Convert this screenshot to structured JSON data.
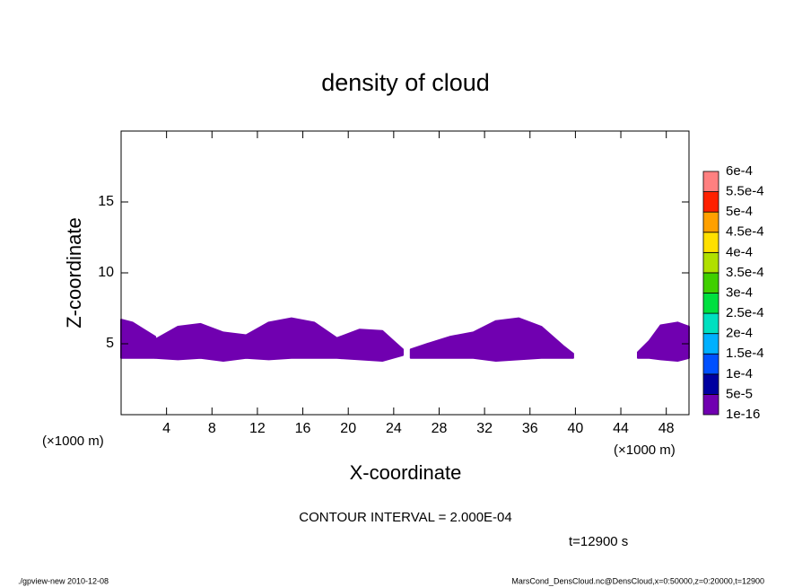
{
  "chart_data": {
    "type": "filled-contour",
    "title": "density of cloud",
    "xlabel": "X-coordinate",
    "ylabel": "Z-coordinate",
    "x_unit_label": "(×1000 m)",
    "xlim": [
      0,
      50
    ],
    "ylim": [
      0,
      20
    ],
    "xticks": [
      4,
      8,
      12,
      16,
      20,
      24,
      28,
      32,
      36,
      40,
      44,
      48
    ],
    "yticks": [
      5,
      10,
      15
    ],
    "regions": [
      {
        "x": [
          0,
          1,
          2,
          3,
          3.2
        ],
        "top": [
          6.7,
          6.5,
          6.0,
          5.5,
          4.6
        ],
        "bottom": [
          4.0,
          4.0,
          4.0,
          4.0,
          4.2
        ]
      },
      {
        "x": [
          3,
          5,
          7,
          9,
          11,
          13,
          15,
          17,
          19,
          21,
          23,
          24.8
        ],
        "top": [
          5.3,
          6.2,
          6.4,
          5.8,
          5.6,
          6.5,
          6.8,
          6.5,
          5.4,
          6.0,
          5.9,
          4.6
        ],
        "bottom": [
          4.0,
          3.9,
          4.0,
          3.8,
          4.0,
          3.9,
          4.0,
          4.0,
          4.0,
          3.9,
          3.8,
          4.2
        ]
      },
      {
        "x": [
          25.5,
          27,
          29,
          31,
          33,
          35,
          37,
          39,
          39.8
        ],
        "top": [
          4.6,
          5.0,
          5.5,
          5.8,
          6.6,
          6.8,
          6.2,
          4.8,
          4.3
        ],
        "bottom": [
          4.0,
          4.0,
          4.0,
          4.0,
          3.8,
          3.9,
          4.0,
          4.0,
          4.0
        ]
      },
      {
        "x": [
          45.5,
          46.5,
          47.5,
          49,
          50
        ],
        "top": [
          4.4,
          5.2,
          6.3,
          6.5,
          6.2
        ],
        "bottom": [
          4.0,
          4.0,
          3.9,
          3.8,
          4.0
        ]
      }
    ],
    "levels": [
      1e-16,
      {
        "value": 5e-05,
        "label": "5e-5"
      },
      {
        "value": 0.0001,
        "label": "1e-4"
      },
      {
        "value": 0.00015,
        "label": "1.5e-4"
      },
      {
        "value": 0.0002,
        "label": "2e-4"
      },
      {
        "value": 0.00025,
        "label": "2.5e-4"
      },
      {
        "value": 0.0003,
        "label": "3e-4"
      },
      {
        "value": 0.00035,
        "label": "3.5e-4"
      },
      {
        "value": 0.0004,
        "label": "4e-4"
      },
      {
        "value": 0.00045,
        "label": "4.5e-4"
      },
      {
        "value": 0.0005,
        "label": "5e-4"
      },
      {
        "value": 0.00055,
        "label": "5.5e-4"
      },
      {
        "value": 0.0006,
        "label": "6e-4"
      }
    ],
    "level_colors": [
      "#7000b0",
      "#0000a0",
      "#0050ff",
      "#00b0ff",
      "#00e0c0",
      "#00e040",
      "#40d000",
      "#b0e000",
      "#ffe000",
      "#ffa000",
      "#ff2000",
      "#ff8080"
    ],
    "contour_interval_text": "CONTOUR INTERVAL = 2.000E-04",
    "time_text": "t=12900 s",
    "footer_left": "./gpview-new  2010-12-08",
    "footer_right": "MarsCond_DensCloud.nc@DensCloud,x=0:50000,z=0:20000,t=12900"
  }
}
